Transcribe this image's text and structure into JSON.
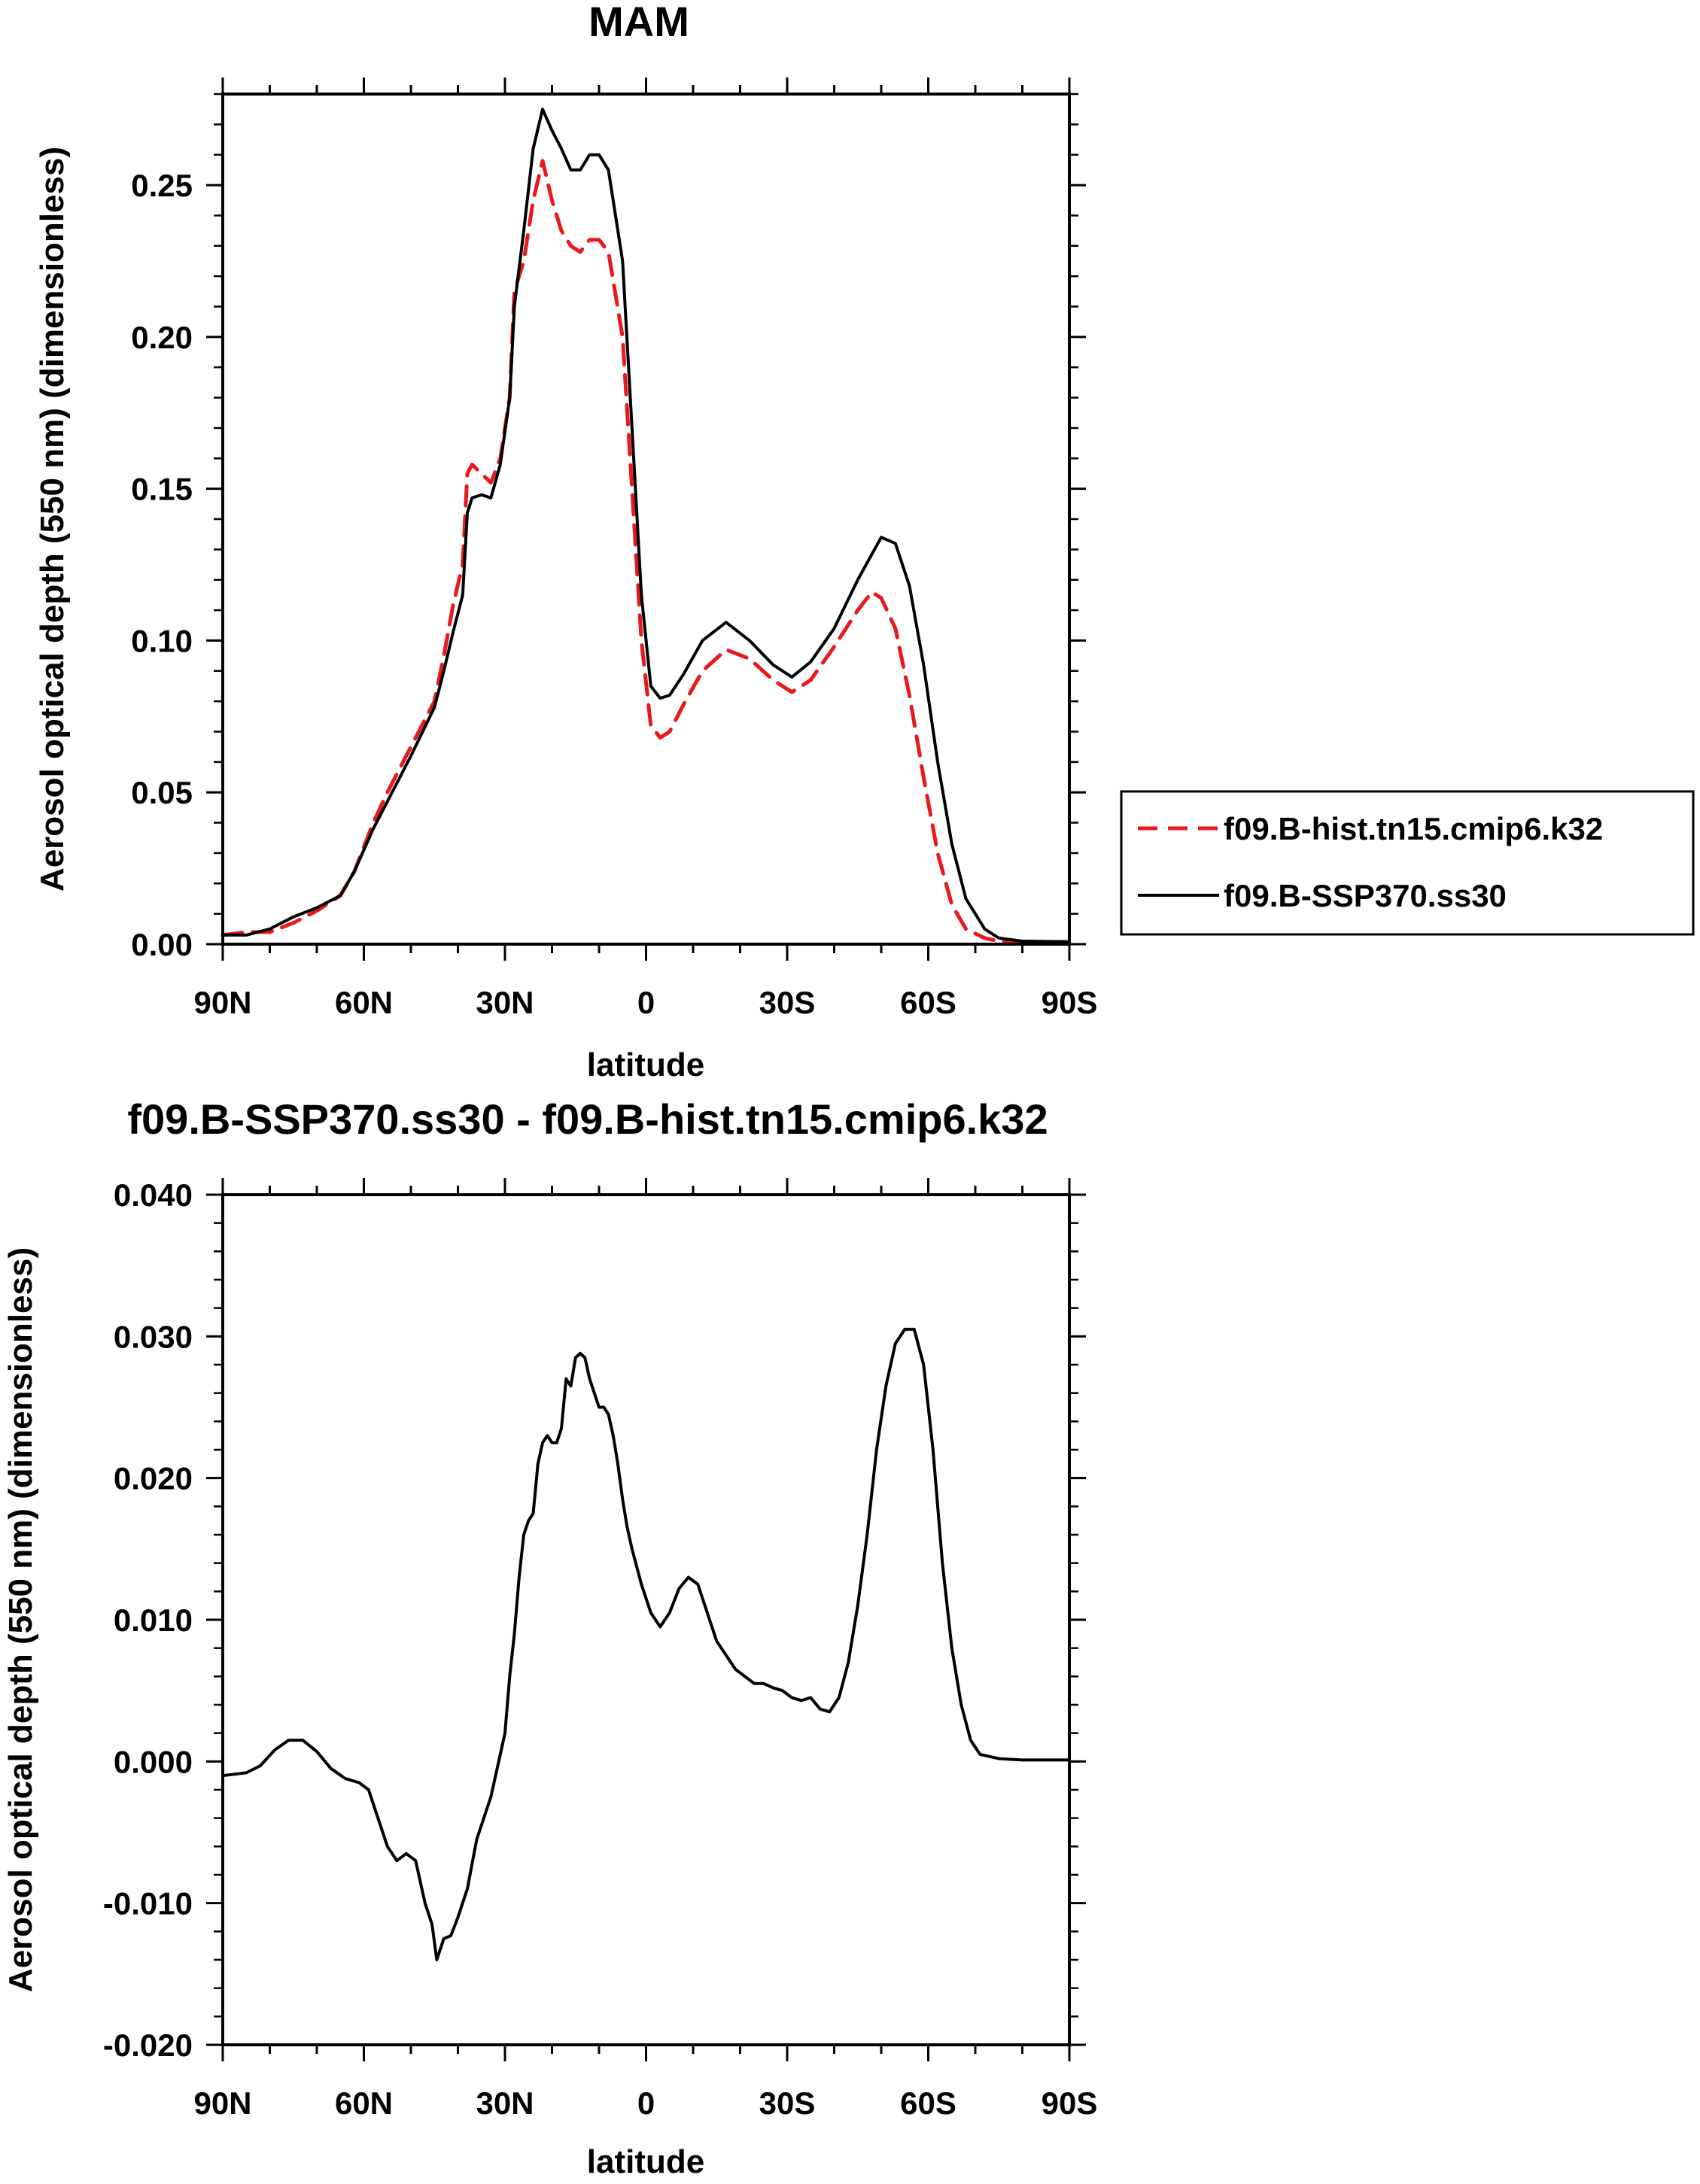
{
  "chart_data": [
    {
      "type": "line",
      "title": "MAM",
      "xlabel": "latitude",
      "ylabel": "Aerosol optical depth (550 nm) (dimensionless)",
      "xlim": [
        90,
        -90
      ],
      "ylim": [
        0,
        0.28
      ],
      "xticks": [
        "90N",
        "60N",
        "30N",
        "0",
        "30S",
        "60S",
        "90S"
      ],
      "yticks": [
        "0.00",
        "0.05",
        "0.10",
        "0.15",
        "0.20",
        "0.25"
      ],
      "grid": false,
      "legend_position": "right",
      "series": [
        {
          "name": "f09.B-hist.tn15.cmip6.k32",
          "color": "#e8191c",
          "dash": "dashed",
          "points": [
            [
              90,
              0.003
            ],
            [
              85,
              0.004
            ],
            [
              80,
              0.004
            ],
            [
              75,
              0.007
            ],
            [
              70,
              0.011
            ],
            [
              65,
              0.016
            ],
            [
              62,
              0.024
            ],
            [
              58,
              0.04
            ],
            [
              55,
              0.05
            ],
            [
              50,
              0.065
            ],
            [
              45,
              0.08
            ],
            [
              43,
              0.095
            ],
            [
              41,
              0.112
            ],
            [
              39,
              0.125
            ],
            [
              38,
              0.155
            ],
            [
              37,
              0.158
            ],
            [
              35,
              0.155
            ],
            [
              33,
              0.152
            ],
            [
              31,
              0.16
            ],
            [
              29,
              0.18
            ],
            [
              28,
              0.215
            ],
            [
              26,
              0.225
            ],
            [
              24,
              0.245
            ],
            [
              22,
              0.258
            ],
            [
              20,
              0.245
            ],
            [
              18,
              0.235
            ],
            [
              16,
              0.23
            ],
            [
              14,
              0.228
            ],
            [
              12,
              0.232
            ],
            [
              10,
              0.232
            ],
            [
              8,
              0.228
            ],
            [
              5,
              0.2
            ],
            [
              3,
              0.15
            ],
            [
              1,
              0.1
            ],
            [
              -1,
              0.072
            ],
            [
              -3,
              0.068
            ],
            [
              -5,
              0.07
            ],
            [
              -8,
              0.079
            ],
            [
              -12,
              0.09
            ],
            [
              -17,
              0.097
            ],
            [
              -22,
              0.094
            ],
            [
              -27,
              0.087
            ],
            [
              -31,
              0.083
            ],
            [
              -35,
              0.087
            ],
            [
              -40,
              0.098
            ],
            [
              -45,
              0.11
            ],
            [
              -48,
              0.116
            ],
            [
              -50,
              0.114
            ],
            [
              -53,
              0.104
            ],
            [
              -56,
              0.082
            ],
            [
              -59,
              0.055
            ],
            [
              -62,
              0.03
            ],
            [
              -65,
              0.013
            ],
            [
              -68,
              0.005
            ],
            [
              -72,
              0.002
            ],
            [
              -75,
              0.001
            ],
            [
              -80,
              0.0007
            ],
            [
              -90,
              0.0005
            ]
          ]
        },
        {
          "name": "f09.B-SSP370.ss30",
          "color": "#000000",
          "dash": "solid",
          "points": [
            [
              90,
              0.003
            ],
            [
              85,
              0.003
            ],
            [
              80,
              0.005
            ],
            [
              75,
              0.009
            ],
            [
              70,
              0.012
            ],
            [
              65,
              0.016
            ],
            [
              62,
              0.024
            ],
            [
              58,
              0.038
            ],
            [
              55,
              0.047
            ],
            [
              50,
              0.062
            ],
            [
              45,
              0.078
            ],
            [
              43,
              0.09
            ],
            [
              41,
              0.103
            ],
            [
              39,
              0.115
            ],
            [
              38,
              0.142
            ],
            [
              37,
              0.147
            ],
            [
              35,
              0.148
            ],
            [
              33,
              0.147
            ],
            [
              31,
              0.158
            ],
            [
              29,
              0.18
            ],
            [
              28,
              0.21
            ],
            [
              26,
              0.235
            ],
            [
              24,
              0.262
            ],
            [
              22,
              0.275
            ],
            [
              20,
              0.268
            ],
            [
              18,
              0.262
            ],
            [
              16,
              0.255
            ],
            [
              14,
              0.255
            ],
            [
              12,
              0.26
            ],
            [
              10,
              0.26
            ],
            [
              8,
              0.255
            ],
            [
              5,
              0.225
            ],
            [
              3,
              0.17
            ],
            [
              1,
              0.115
            ],
            [
              -1,
              0.085
            ],
            [
              -3,
              0.081
            ],
            [
              -5,
              0.082
            ],
            [
              -8,
              0.089
            ],
            [
              -12,
              0.1
            ],
            [
              -17,
              0.106
            ],
            [
              -22,
              0.1
            ],
            [
              -27,
              0.092
            ],
            [
              -31,
              0.088
            ],
            [
              -35,
              0.093
            ],
            [
              -40,
              0.104
            ],
            [
              -45,
              0.12
            ],
            [
              -50,
              0.134
            ],
            [
              -53,
              0.132
            ],
            [
              -56,
              0.118
            ],
            [
              -59,
              0.092
            ],
            [
              -62,
              0.06
            ],
            [
              -65,
              0.033
            ],
            [
              -68,
              0.015
            ],
            [
              -72,
              0.005
            ],
            [
              -75,
              0.002
            ],
            [
              -80,
              0.001
            ],
            [
              -90,
              0.0008
            ]
          ]
        }
      ]
    },
    {
      "type": "line",
      "title": "f09.B-SSP370.ss30 - f09.B-hist.tn15.cmip6.k32",
      "xlabel": "latitude",
      "ylabel": "Aerosol optical depth (550 nm) (dimensionless)",
      "xlim": [
        90,
        -90
      ],
      "ylim": [
        -0.02,
        0.04
      ],
      "xticks": [
        "90N",
        "60N",
        "30N",
        "0",
        "30S",
        "60S",
        "90S"
      ],
      "yticks": [
        "-0.020",
        "-0.010",
        "0.000",
        "0.010",
        "0.020",
        "0.030",
        "0.040"
      ],
      "grid": false,
      "series": [
        {
          "color": "#000000",
          "dash": "solid",
          "points": [
            [
              90,
              -0.001
            ],
            [
              85,
              -0.0008
            ],
            [
              82,
              -0.0003
            ],
            [
              79,
              0.0008
            ],
            [
              76,
              0.0015
            ],
            [
              73,
              0.0015
            ],
            [
              70,
              0.0007
            ],
            [
              67,
              -0.0005
            ],
            [
              64,
              -0.0012
            ],
            [
              61,
              -0.0015
            ],
            [
              59,
              -0.002
            ],
            [
              57,
              -0.004
            ],
            [
              55,
              -0.006
            ],
            [
              53,
              -0.007
            ],
            [
              51,
              -0.0065
            ],
            [
              49,
              -0.007
            ],
            [
              47,
              -0.01
            ],
            [
              45.5,
              -0.0115
            ],
            [
              44.5,
              -0.014
            ],
            [
              43,
              -0.0125
            ],
            [
              41.5,
              -0.0123
            ],
            [
              40,
              -0.011
            ],
            [
              38,
              -0.009
            ],
            [
              36,
              -0.0055
            ],
            [
              34,
              -0.0035
            ],
            [
              33,
              -0.0025
            ],
            [
              31,
              0.0005
            ],
            [
              30,
              0.002
            ],
            [
              29,
              0.006
            ],
            [
              28,
              0.009
            ],
            [
              27,
              0.013
            ],
            [
              26,
              0.016
            ],
            [
              25,
              0.017
            ],
            [
              24,
              0.0175
            ],
            [
              23,
              0.021
            ],
            [
              22,
              0.0225
            ],
            [
              21,
              0.023
            ],
            [
              20,
              0.0225
            ],
            [
              19,
              0.0225
            ],
            [
              18,
              0.0235
            ],
            [
              17,
              0.027
            ],
            [
              16,
              0.0265
            ],
            [
              15,
              0.0285
            ],
            [
              14,
              0.0288
            ],
            [
              13,
              0.0285
            ],
            [
              12,
              0.027
            ],
            [
              11,
              0.026
            ],
            [
              10,
              0.025
            ],
            [
              9,
              0.025
            ],
            [
              8,
              0.0245
            ],
            [
              7,
              0.023
            ],
            [
              6,
              0.021
            ],
            [
              5,
              0.0185
            ],
            [
              4,
              0.0165
            ],
            [
              3,
              0.015
            ],
            [
              1,
              0.0125
            ],
            [
              -1,
              0.0105
            ],
            [
              -3,
              0.0095
            ],
            [
              -5,
              0.0105
            ],
            [
              -7,
              0.0122
            ],
            [
              -9,
              0.013
            ],
            [
              -11,
              0.0125
            ],
            [
              -13,
              0.0105
            ],
            [
              -15,
              0.0085
            ],
            [
              -17,
              0.0075
            ],
            [
              -19,
              0.0065
            ],
            [
              -21,
              0.006
            ],
            [
              -23,
              0.0055
            ],
            [
              -25,
              0.0055
            ],
            [
              -27,
              0.0052
            ],
            [
              -29,
              0.005
            ],
            [
              -31,
              0.0045
            ],
            [
              -33,
              0.0043
            ],
            [
              -35,
              0.0045
            ],
            [
              -37,
              0.0037
            ],
            [
              -39,
              0.0035
            ],
            [
              -41,
              0.0045
            ],
            [
              -43,
              0.007
            ],
            [
              -45,
              0.011
            ],
            [
              -47,
              0.016
            ],
            [
              -49,
              0.022
            ],
            [
              -51,
              0.0265
            ],
            [
              -53,
              0.0295
            ],
            [
              -55,
              0.0305
            ],
            [
              -57,
              0.0305
            ],
            [
              -59,
              0.028
            ],
            [
              -61,
              0.022
            ],
            [
              -63,
              0.014
            ],
            [
              -65,
              0.008
            ],
            [
              -67,
              0.004
            ],
            [
              -69,
              0.0015
            ],
            [
              -71,
              0.0005
            ],
            [
              -75,
              0.0002
            ],
            [
              -80,
              0.0001
            ],
            [
              -90,
              0.0001
            ]
          ]
        }
      ]
    }
  ]
}
